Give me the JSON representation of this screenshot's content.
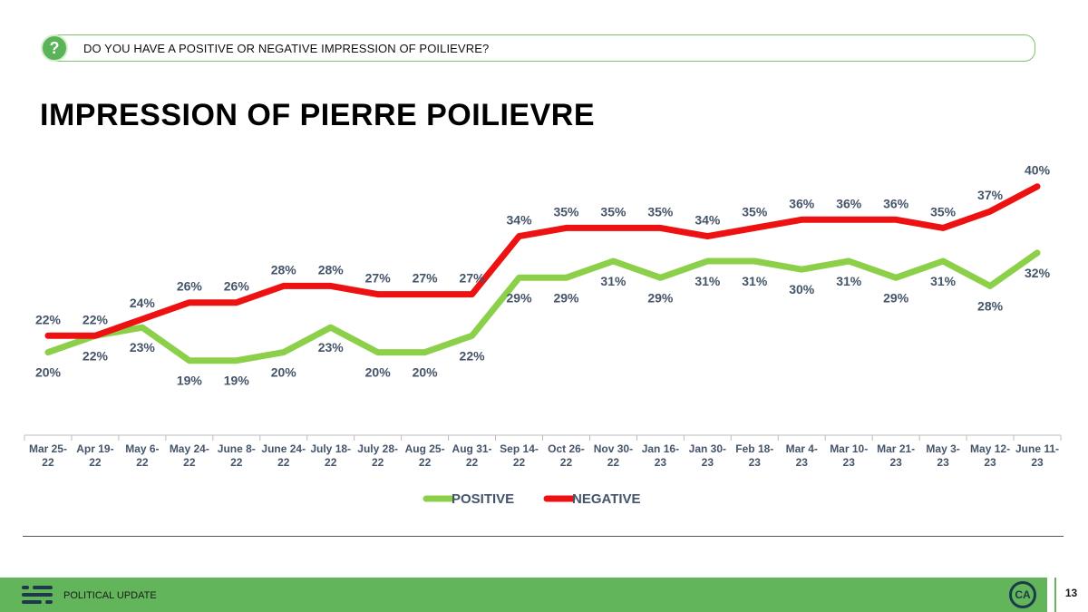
{
  "header": {
    "question_icon": "?",
    "question": "DO YOU HAVE A POSITIVE OR NEGATIVE IMPRESSION OF POILIEVRE?",
    "title": "IMPRESSION OF PIERRE POILIEVRE"
  },
  "footer": {
    "label": "POLITICAL UPDATE",
    "brand": "CA",
    "page_number": "13",
    "color": "#62b55a"
  },
  "chart_data": {
    "type": "line",
    "categories": [
      [
        "Mar 25-",
        "22"
      ],
      [
        "Apr 19-",
        "22"
      ],
      [
        "May 6-",
        "22"
      ],
      [
        "May 24-",
        "22"
      ],
      [
        "June 8-",
        "22"
      ],
      [
        "June 24-",
        "22"
      ],
      [
        "July 18-",
        "22"
      ],
      [
        "July 28-",
        "22"
      ],
      [
        "Aug 25-",
        "22"
      ],
      [
        "Aug 31-",
        "22"
      ],
      [
        "Sep 14-",
        "22"
      ],
      [
        "Oct 26-",
        "22"
      ],
      [
        "Nov 30-",
        "22"
      ],
      [
        "Jan 16-",
        "23"
      ],
      [
        "Jan 30-",
        "23"
      ],
      [
        "Feb 18-",
        "23"
      ],
      [
        "Mar 4-",
        "23"
      ],
      [
        "Mar 10-",
        "23"
      ],
      [
        "Mar 21-",
        "23"
      ],
      [
        "May 3-",
        "23"
      ],
      [
        "May 12-",
        "23"
      ],
      [
        "June 11-",
        "23"
      ]
    ],
    "series": [
      {
        "name": "POSITIVE",
        "color": "#8cd04a",
        "label_position": "below",
        "values": [
          20,
          22,
          23,
          19,
          19,
          20,
          23,
          20,
          20,
          22,
          29,
          29,
          31,
          29,
          31,
          31,
          30,
          31,
          29,
          31,
          28,
          32
        ]
      },
      {
        "name": "NEGATIVE",
        "color": "#ee1111",
        "label_position": "above",
        "values": [
          22,
          22,
          24,
          26,
          26,
          28,
          28,
          27,
          27,
          27,
          34,
          35,
          35,
          35,
          34,
          35,
          36,
          36,
          36,
          35,
          37,
          40
        ]
      }
    ],
    "value_suffix": "%",
    "ylim": [
      10,
      45
    ],
    "legend": "bottom-center",
    "grid": false
  }
}
